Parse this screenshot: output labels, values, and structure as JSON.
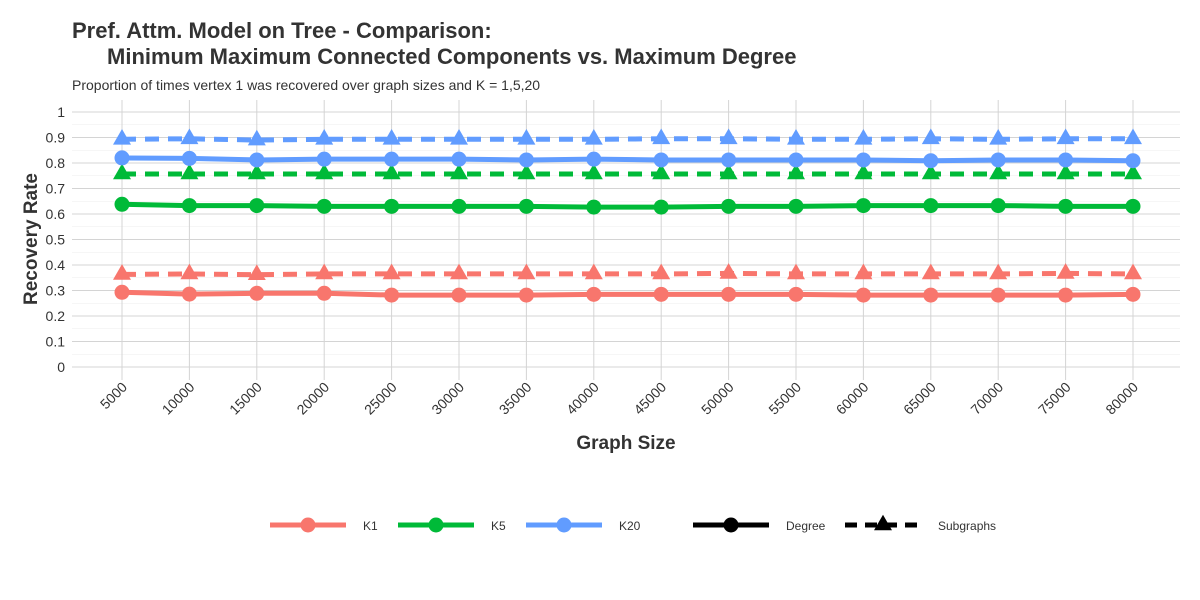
{
  "chart_data": {
    "type": "line",
    "title_line1": "Pref. Attm. Model on Tree - Comparison:",
    "title_line2": "Minimum Maximum Connected Components vs. Maximum Degree",
    "subtitle": "Proportion of times vertex 1 was recovered over graph sizes and K = 1,5,20",
    "xlabel": "Graph Size",
    "ylabel": "Recovery Rate",
    "ylim": [
      0,
      1
    ],
    "yticks": [
      "0",
      "0.1",
      "0.2",
      "0.3",
      "0.4",
      "0.5",
      "0.6",
      "0.7",
      "0.8",
      "0.9",
      "1"
    ],
    "ytick_values": [
      0,
      0.1,
      0.2,
      0.3,
      0.4,
      0.5,
      0.6,
      0.7,
      0.8,
      0.9,
      1.0
    ],
    "categories": [
      "5000",
      "10000",
      "15000",
      "20000",
      "25000",
      "30000",
      "35000",
      "40000",
      "45000",
      "50000",
      "55000",
      "60000",
      "65000",
      "70000",
      "75000",
      "80000"
    ],
    "grid": true,
    "legend_position": "bottom",
    "series": [
      {
        "name": "K1",
        "method": "Degree",
        "color": "#F8766D",
        "style": "solid",
        "marker": "circle",
        "values": [
          0.293,
          0.286,
          0.289,
          0.289,
          0.282,
          0.282,
          0.282,
          0.285,
          0.285,
          0.285,
          0.285,
          0.282,
          0.282,
          0.282,
          0.282,
          0.285
        ]
      },
      {
        "name": "K1",
        "method": "Subgraphs",
        "color": "#F8766D",
        "style": "dashed",
        "marker": "triangle",
        "values": [
          0.363,
          0.365,
          0.362,
          0.365,
          0.365,
          0.365,
          0.365,
          0.365,
          0.365,
          0.367,
          0.365,
          0.365,
          0.365,
          0.365,
          0.367,
          0.365
        ]
      },
      {
        "name": "K5",
        "method": "Degree",
        "color": "#00BA38",
        "style": "solid",
        "marker": "circle",
        "values": [
          0.638,
          0.633,
          0.633,
          0.63,
          0.63,
          0.63,
          0.63,
          0.627,
          0.627,
          0.63,
          0.63,
          0.633,
          0.633,
          0.633,
          0.63,
          0.63
        ]
      },
      {
        "name": "K5",
        "method": "Subgraphs",
        "color": "#00BA38",
        "style": "dashed",
        "marker": "triangle",
        "values": [
          0.757,
          0.757,
          0.757,
          0.757,
          0.757,
          0.757,
          0.757,
          0.757,
          0.757,
          0.757,
          0.757,
          0.757,
          0.757,
          0.757,
          0.757,
          0.757
        ]
      },
      {
        "name": "K20",
        "method": "Degree",
        "color": "#619CFF",
        "style": "solid",
        "marker": "circle",
        "values": [
          0.82,
          0.818,
          0.812,
          0.815,
          0.815,
          0.815,
          0.812,
          0.815,
          0.812,
          0.812,
          0.812,
          0.812,
          0.809,
          0.812,
          0.812,
          0.809
        ]
      },
      {
        "name": "K20",
        "method": "Subgraphs",
        "color": "#619CFF",
        "style": "dashed",
        "marker": "triangle",
        "values": [
          0.893,
          0.895,
          0.89,
          0.893,
          0.893,
          0.893,
          0.893,
          0.893,
          0.895,
          0.895,
          0.893,
          0.893,
          0.895,
          0.893,
          0.895,
          0.895
        ]
      }
    ],
    "legend": {
      "colors": [
        {
          "label": "K1",
          "color": "#F8766D"
        },
        {
          "label": "K5",
          "color": "#00BA38"
        },
        {
          "label": "K20",
          "color": "#619CFF"
        }
      ],
      "linetypes": [
        {
          "label": "Degree",
          "style": "solid",
          "marker": "circle",
          "color": "#000000"
        },
        {
          "label": "Subgraphs",
          "style": "dashed",
          "marker": "triangle",
          "color": "#000000"
        }
      ]
    }
  }
}
